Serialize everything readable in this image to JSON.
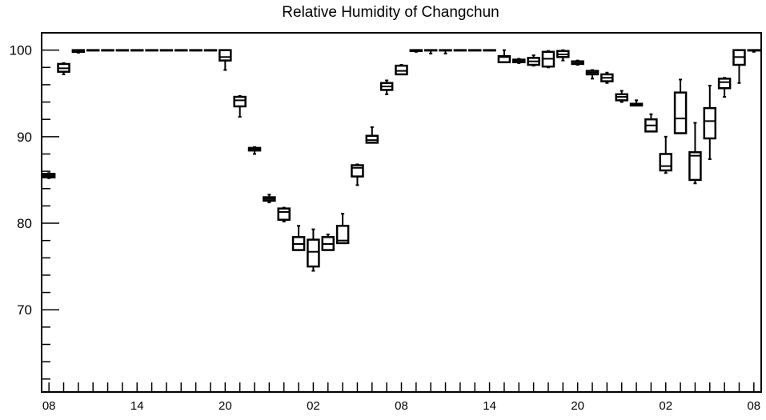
{
  "chart_data": {
    "type": "box",
    "title": "Relative Humidity of Changchun",
    "xlabel": "",
    "ylabel": "",
    "ylim": [
      60.5,
      102
    ],
    "xlim": [
      0.5,
      49.5
    ],
    "grid": false,
    "legend": "none",
    "y_ticks": [
      70,
      80,
      90,
      100
    ],
    "x_tick_positions": [
      1,
      7,
      13,
      19,
      25,
      31,
      37,
      43,
      49
    ],
    "x_tick_labels": [
      "08",
      "14",
      "20",
      "02",
      "08",
      "14",
      "20",
      "02",
      "08"
    ],
    "boxes": [
      {
        "x": 1,
        "min": 85.2,
        "q1": 85.3,
        "median": 85.5,
        "q3": 85.7,
        "max": 85.8
      },
      {
        "x": 2,
        "min": 97.2,
        "q1": 97.5,
        "median": 97.9,
        "q3": 98.4,
        "max": 98.5
      },
      {
        "x": 3,
        "min": 99.7,
        "q1": 99.8,
        "median": 99.9,
        "q3": 100,
        "max": 100
      },
      {
        "x": 4,
        "min": 100,
        "q1": 100,
        "median": 100,
        "q3": 100,
        "max": 100
      },
      {
        "x": 5,
        "min": 100,
        "q1": 100,
        "median": 100,
        "q3": 100,
        "max": 100
      },
      {
        "x": 6,
        "min": 100,
        "q1": 100,
        "median": 100,
        "q3": 100,
        "max": 100
      },
      {
        "x": 7,
        "min": 100,
        "q1": 100,
        "median": 100,
        "q3": 100,
        "max": 100
      },
      {
        "x": 8,
        "min": 100,
        "q1": 100,
        "median": 100,
        "q3": 100,
        "max": 100
      },
      {
        "x": 9,
        "min": 100,
        "q1": 100,
        "median": 100,
        "q3": 100,
        "max": 100
      },
      {
        "x": 10,
        "min": 100,
        "q1": 100,
        "median": 100,
        "q3": 100,
        "max": 100
      },
      {
        "x": 11,
        "min": 100,
        "q1": 100,
        "median": 100,
        "q3": 100,
        "max": 100
      },
      {
        "x": 12,
        "min": 100,
        "q1": 100,
        "median": 100,
        "q3": 100,
        "max": 100
      },
      {
        "x": 13,
        "min": 97.7,
        "q1": 98.8,
        "median": 99.2,
        "q3": 100,
        "max": 100
      },
      {
        "x": 14,
        "min": 92.3,
        "q1": 93.5,
        "median": 94.2,
        "q3": 94.6,
        "max": 94.7
      },
      {
        "x": 15,
        "min": 88.0,
        "q1": 88.4,
        "median": 88.6,
        "q3": 88.7,
        "max": 88.8
      },
      {
        "x": 16,
        "min": 82.4,
        "q1": 82.6,
        "median": 82.8,
        "q3": 83.0,
        "max": 83.3
      },
      {
        "x": 17,
        "min": 80.2,
        "q1": 80.4,
        "median": 81.3,
        "q3": 81.7,
        "max": 81.8
      },
      {
        "x": 18,
        "min": 76.9,
        "q1": 76.9,
        "median": 77.6,
        "q3": 78.4,
        "max": 79.7
      },
      {
        "x": 19,
        "min": 74.5,
        "q1": 75.0,
        "median": 76.7,
        "q3": 78.1,
        "max": 79.3
      },
      {
        "x": 20,
        "min": 76.9,
        "q1": 76.9,
        "median": 77.6,
        "q3": 78.4,
        "max": 78.7
      },
      {
        "x": 21,
        "min": 77.7,
        "q1": 77.7,
        "median": 78.0,
        "q3": 79.7,
        "max": 81.1
      },
      {
        "x": 22,
        "min": 84.4,
        "q1": 85.4,
        "median": 86.4,
        "q3": 86.7,
        "max": 86.8
      },
      {
        "x": 23,
        "min": 89.3,
        "q1": 89.3,
        "median": 89.6,
        "q3": 90.1,
        "max": 91.1
      },
      {
        "x": 24,
        "min": 94.9,
        "q1": 95.4,
        "median": 95.8,
        "q3": 96.2,
        "max": 96.5
      },
      {
        "x": 25,
        "min": 97.2,
        "q1": 97.2,
        "median": 97.6,
        "q3": 98.2,
        "max": 98.3
      },
      {
        "x": 26,
        "min": 99.8,
        "q1": 99.9,
        "median": 100,
        "q3": 100,
        "max": 100
      },
      {
        "x": 27,
        "min": 99.6,
        "q1": 100,
        "median": 100,
        "q3": 100,
        "max": 100
      },
      {
        "x": 28,
        "min": 99.6,
        "q1": 100,
        "median": 100,
        "q3": 100,
        "max": 100
      },
      {
        "x": 29,
        "min": 100,
        "q1": 100,
        "median": 100,
        "q3": 100,
        "max": 100
      },
      {
        "x": 30,
        "min": 100,
        "q1": 100,
        "median": 100,
        "q3": 100,
        "max": 100
      },
      {
        "x": 31,
        "min": 100,
        "q1": 100,
        "median": 100,
        "q3": 100,
        "max": 100
      },
      {
        "x": 32,
        "min": 98.6,
        "q1": 98.6,
        "median": 99.2,
        "q3": 99.3,
        "max": 100
      },
      {
        "x": 33,
        "min": 98.5,
        "q1": 98.6,
        "median": 98.8,
        "q3": 98.9,
        "max": 99.0
      },
      {
        "x": 34,
        "min": 98.2,
        "q1": 98.3,
        "median": 98.7,
        "q3": 99.1,
        "max": 99.4
      },
      {
        "x": 35,
        "min": 98.0,
        "q1": 98.1,
        "median": 99.0,
        "q3": 99.8,
        "max": 99.9
      },
      {
        "x": 36,
        "min": 98.8,
        "q1": 99.2,
        "median": 99.5,
        "q3": 99.9,
        "max": 100
      },
      {
        "x": 37,
        "min": 98.3,
        "q1": 98.4,
        "median": 98.6,
        "q3": 98.7,
        "max": 98.8
      },
      {
        "x": 38,
        "min": 96.7,
        "q1": 97.2,
        "median": 97.4,
        "q3": 97.6,
        "max": 97.7
      },
      {
        "x": 39,
        "min": 96.2,
        "q1": 96.4,
        "median": 96.8,
        "q3": 97.2,
        "max": 97.4
      },
      {
        "x": 40,
        "min": 94.0,
        "q1": 94.2,
        "median": 94.6,
        "q3": 94.9,
        "max": 95.3
      },
      {
        "x": 41,
        "min": 93.6,
        "q1": 93.6,
        "median": 93.7,
        "q3": 93.8,
        "max": 94.2
      },
      {
        "x": 42,
        "min": 90.6,
        "q1": 90.6,
        "median": 91.3,
        "q3": 92.0,
        "max": 92.6
      },
      {
        "x": 43,
        "min": 85.8,
        "q1": 86.1,
        "median": 86.6,
        "q3": 88.0,
        "max": 90.0
      },
      {
        "x": 44,
        "min": 90.4,
        "q1": 90.4,
        "median": 92.1,
        "q3": 95.1,
        "max": 96.6
      },
      {
        "x": 45,
        "min": 84.6,
        "q1": 85.0,
        "median": 87.8,
        "q3": 88.2,
        "max": 91.6
      },
      {
        "x": 46,
        "min": 87.4,
        "q1": 89.8,
        "median": 91.8,
        "q3": 93.3,
        "max": 95.9
      },
      {
        "x": 47,
        "min": 94.6,
        "q1": 95.6,
        "median": 96.3,
        "q3": 96.7,
        "max": 96.8
      },
      {
        "x": 48,
        "min": 96.2,
        "q1": 98.3,
        "median": 99.2,
        "q3": 100,
        "max": 100
      },
      {
        "x": 49,
        "min": 99.8,
        "q1": 100,
        "median": 100,
        "q3": 100,
        "max": 100
      }
    ]
  }
}
